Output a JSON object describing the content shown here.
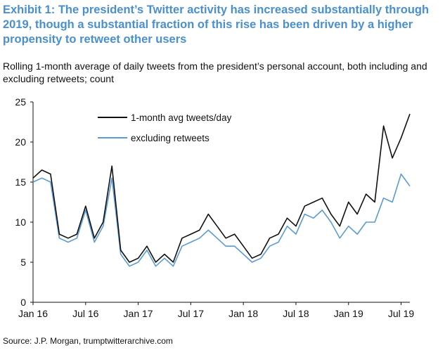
{
  "title": "Exhibit 1: The president’s Twitter activity has increased substantially through 2019, though a substantial fraction of this rise has been driven by a higher propensity to retweet other users",
  "subtitle": "Rolling 1-month average of daily tweets from the president’s personal account, both including and excluding retweets; count",
  "source": "Source: J.P. Morgan, trumptwitterarchive.com",
  "chart_data": {
    "type": "line",
    "title": "",
    "xlabel": "",
    "ylabel": "",
    "ylim": [
      0,
      25
    ],
    "y_ticks": [
      0,
      5,
      10,
      15,
      20,
      25
    ],
    "x_ticks": [
      "Jan 16",
      "Jul 16",
      "Jan 17",
      "Jul 17",
      "Jan 18",
      "Jul 18",
      "Jan 19",
      "Jul 19"
    ],
    "xlim": [
      "2016-01",
      "2019-08"
    ],
    "grid": false,
    "legend": "top-center",
    "x": [
      "2016-01",
      "2016-02",
      "2016-03",
      "2016-04",
      "2016-05",
      "2016-06",
      "2016-07",
      "2016-08",
      "2016-09",
      "2016-10",
      "2016-11",
      "2016-12",
      "2017-01",
      "2017-02",
      "2017-03",
      "2017-04",
      "2017-05",
      "2017-06",
      "2017-07",
      "2017-08",
      "2017-09",
      "2017-10",
      "2017-11",
      "2017-12",
      "2018-01",
      "2018-02",
      "2018-03",
      "2018-04",
      "2018-05",
      "2018-06",
      "2018-07",
      "2018-08",
      "2018-09",
      "2018-10",
      "2018-11",
      "2018-12",
      "2019-01",
      "2019-02",
      "2019-03",
      "2019-04",
      "2019-05",
      "2019-06",
      "2019-07",
      "2019-08"
    ],
    "series": [
      {
        "name": "1-month avg tweets/day",
        "color": "#111111",
        "values": [
          15.5,
          16.5,
          16.0,
          8.5,
          8.0,
          8.5,
          12.0,
          8.0,
          10.0,
          17.0,
          6.5,
          5.0,
          5.5,
          7.0,
          5.0,
          6.0,
          5.0,
          8.0,
          8.5,
          9.0,
          11.0,
          9.5,
          8.0,
          8.5,
          7.0,
          5.5,
          6.0,
          8.0,
          8.5,
          10.5,
          9.5,
          12.0,
          12.5,
          13.0,
          11.0,
          9.5,
          12.5,
          11.0,
          13.5,
          12.5,
          22.0,
          18.0,
          20.5,
          23.5
        ]
      },
      {
        "name": "excluding retweets",
        "color": "#5b9bd5",
        "values": [
          15.0,
          15.5,
          15.0,
          8.0,
          7.5,
          8.0,
          11.5,
          7.5,
          9.5,
          15.5,
          6.0,
          4.5,
          5.0,
          6.5,
          4.5,
          5.5,
          4.5,
          7.0,
          7.5,
          8.0,
          9.0,
          8.0,
          7.0,
          7.0,
          6.0,
          5.0,
          5.5,
          7.0,
          7.5,
          9.5,
          8.5,
          11.0,
          10.5,
          11.5,
          10.0,
          8.0,
          9.5,
          8.5,
          10.0,
          10.0,
          13.0,
          12.5,
          16.0,
          14.5
        ]
      }
    ]
  }
}
